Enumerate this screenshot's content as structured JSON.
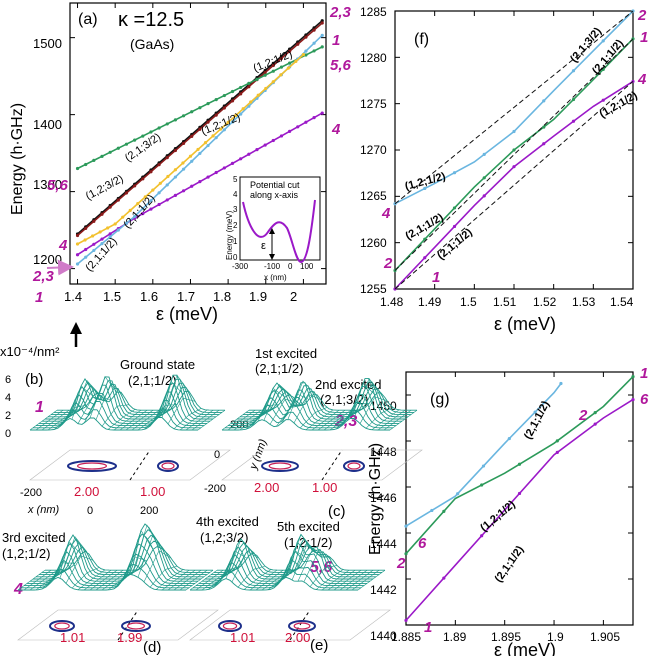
{
  "colors": {
    "teal": "#1f9a8a",
    "magenta": "#b0189c",
    "purple": "#9b19c8",
    "lightblue": "#6ab6e0",
    "green": "#2c9a5a",
    "black": "#111111",
    "darkred": "#8b1a1a",
    "yellow": "#f2c12e",
    "pink": "#e08fd0",
    "red": "#d0103a"
  },
  "panel_a": {
    "label": "(a)",
    "kappa": "κ =12.5",
    "material": "(GaAs)",
    "ylabel": "Energy (h·GHz)",
    "xlabel": "ε (meV)",
    "xticks": [
      "1.4",
      "1.5",
      "1.6",
      "1.7",
      "1.8",
      "1.9",
      "2"
    ],
    "yticks": [
      "1200",
      "1300",
      "1400",
      "1500"
    ],
    "right_labels": [
      "2,3",
      "1",
      "5,6",
      "4"
    ],
    "left_labels": [
      "5,6",
      "4",
      "2,3",
      "1"
    ],
    "curve_labels": [
      "(1,2;1/2)",
      "(1,2;1/2)",
      "(1,2;3/2)",
      "(2,1;3/2)",
      "(2,1;1/2)",
      "(2,1;1/2)"
    ],
    "inset": {
      "title_line1": "Potential cut",
      "title_line2": "along x-axis",
      "ylabel": "Energy (meV)",
      "xlabel": "x (nm)",
      "yticks": [
        "0",
        "1",
        "2",
        "3",
        "4",
        "5"
      ],
      "xticks": [
        "-300",
        "-100",
        "0",
        "100"
      ],
      "epsilon": "ε"
    }
  },
  "panel_f": {
    "label": "(f)",
    "xlabel": "ε (meV)",
    "xticks": [
      "1.48",
      "1.49",
      "1.5",
      "1.51",
      "1.52",
      "1.53",
      "1.54"
    ],
    "yticks": [
      "1255",
      "1260",
      "1265",
      "1270",
      "1275",
      "1280",
      "1285"
    ],
    "left_labels": [
      "4",
      "2",
      "1"
    ],
    "right_labels": [
      "2",
      "1",
      "4"
    ],
    "curve_labels": [
      "(1,2;1/2)",
      "(2,1;1/2)",
      "(2,1;1/2)",
      "(2,1;3/2)",
      "(2,1;1/2)",
      "(1,2;1/2)"
    ]
  },
  "panel_g": {
    "label": "(g)",
    "ylabel": "Energy (h·GHz)",
    "xlabel": "ε (meV)",
    "xticks": [
      "1.885",
      "1.89",
      "1.895",
      "1.9",
      "1.905"
    ],
    "yticks": [
      "1440",
      "1442",
      "1444",
      "1446",
      "1448",
      "1450"
    ],
    "left_labels": [
      "6",
      "2",
      "1"
    ],
    "right_labels": [
      "1",
      "6",
      "2"
    ],
    "curve_labels": [
      "(2,1;1/2)",
      "(1,2;1/2)",
      "(2,1;1/2)"
    ]
  },
  "density_panels": {
    "units": "x10⁻⁴/nm²",
    "zticks": [
      "6",
      "4",
      "2",
      "0"
    ],
    "axis_ticks": [
      "200",
      "0",
      "-200",
      "-200",
      "0",
      "200"
    ],
    "x_axis": "x (nm)",
    "y_axis": "y (nm)",
    "b": {
      "label": "(b)",
      "title": "Ground state",
      "state": "(2,1;1/2)",
      "num": "1",
      "occ_left": "2.00",
      "occ_right": "1.00"
    },
    "c": {
      "label": "(c)",
      "title1": "1st excited",
      "state1": "(2,1;1/2)",
      "title2": "2nd excited",
      "state2": "(2,1;3/2)",
      "num": "2,3",
      "occ_left": "2.00",
      "occ_right": "1.00"
    },
    "d": {
      "label": "(d)",
      "title": "3rd excited",
      "state": "(1,2;1/2)",
      "num": "4",
      "occ_left": "1.01",
      "occ_right": "1.99"
    },
    "e": {
      "label": "(e)",
      "title1": "4th excited",
      "state1": "(1,2;3/2)",
      "title2": "5th excited",
      "state2": "(1,2;1/2)",
      "num": "5,6",
      "occ_left": "1.01",
      "occ_right": "2.00"
    }
  },
  "chart_data": [
    {
      "type": "line",
      "panel": "a",
      "xlabel": "ε (meV)",
      "ylabel": "Energy (h·GHz)",
      "xlim": [
        1.38,
        2.06
      ],
      "ylim": [
        1180,
        1545
      ],
      "series": [
        {
          "name": "1",
          "color": "#111111",
          "x": [
            1.4,
            2.05
          ],
          "y": [
            1245,
            1522
          ]
        },
        {
          "name": "2,3",
          "color": "#8b1a1a",
          "x": [
            1.4,
            2.05
          ],
          "y": [
            1243,
            1519
          ]
        },
        {
          "name": "5,6",
          "color": "#2c9a5a",
          "x": [
            1.4,
            2.05
          ],
          "y": [
            1330,
            1488
          ]
        },
        {
          "name": "4",
          "color": "#9b19c8",
          "x": [
            1.4,
            1.55,
            2.05
          ],
          "y": [
            1218,
            1265,
            1402
          ]
        },
        {
          "name": "(2,1;1/2)",
          "color": "#6ab6e0",
          "x": [
            1.4,
            1.55,
            2.05
          ],
          "y": [
            1206,
            1267,
            1503
          ]
        },
        {
          "name": "(2,1;1/2) yellow",
          "color": "#f2c12e",
          "x": [
            1.4,
            1.5,
            2.0
          ],
          "y": [
            1232,
            1258,
            1478
          ]
        }
      ]
    },
    {
      "type": "line",
      "panel": "f",
      "xlabel": "ε (meV)",
      "xlim": [
        1.48,
        1.54
      ],
      "ylim": [
        1255,
        1285
      ],
      "series": [
        {
          "name": "2",
          "color": "#6ab6e0",
          "x": [
            1.48,
            1.49,
            1.5,
            1.51,
            1.52,
            1.53,
            1.54
          ],
          "y": [
            1264.2,
            1266.4,
            1268.7,
            1272.0,
            1276.4,
            1280.7,
            1285.0
          ]
        },
        {
          "name": "1",
          "color": "#2c9a5a",
          "x": [
            1.48,
            1.49,
            1.5,
            1.51,
            1.52,
            1.53,
            1.54
          ],
          "y": [
            1257.0,
            1261.5,
            1266.0,
            1270.0,
            1273.3,
            1277.6,
            1282.0
          ]
        },
        {
          "name": "4",
          "color": "#9b19c8",
          "x": [
            1.48,
            1.49,
            1.5,
            1.51,
            1.52,
            1.53,
            1.54
          ],
          "y": [
            1255.0,
            1259.5,
            1264.0,
            1268.2,
            1271.5,
            1274.7,
            1277.4
          ]
        }
      ]
    },
    {
      "type": "line",
      "panel": "g",
      "xlabel": "ε (meV)",
      "ylabel": "Energy (h·GHz)",
      "xlim": [
        1.885,
        1.908
      ],
      "ylim": [
        1440,
        1451
      ],
      "series": [
        {
          "name": "2",
          "color": "#6ab6e0",
          "x": [
            1.885,
            1.89,
            1.895,
            1.9,
            1.9007
          ],
          "y": [
            1444.3,
            1445.6,
            1447.9,
            1450.1,
            1450.5
          ]
        },
        {
          "name": "1",
          "color": "#2c9a5a",
          "x": [
            1.885,
            1.89,
            1.895,
            1.9,
            1.905,
            1.908
          ],
          "y": [
            1443.1,
            1445.5,
            1446.6,
            1447.9,
            1449.5,
            1450.8
          ]
        },
        {
          "name": "6",
          "color": "#9b19c8",
          "x": [
            1.885,
            1.89,
            1.895,
            1.9,
            1.905,
            1.908
          ],
          "y": [
            1440.2,
            1442.6,
            1445.0,
            1447.4,
            1449.0,
            1449.8
          ]
        }
      ]
    }
  ]
}
